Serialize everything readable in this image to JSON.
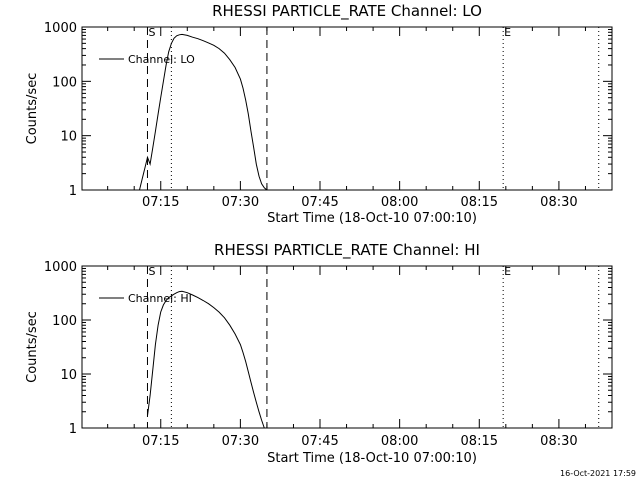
{
  "chart_data": [
    {
      "type": "line",
      "title": "RHESSI PARTICLE_RATE Channel: LO",
      "xlabel": "Start Time (18-Oct-10 07:00:10)",
      "ylabel": "Counts/sec",
      "y_scale": "log",
      "ylim": [
        1,
        1000
      ],
      "xlim": [
        "07:00:10",
        "08:40:00"
      ],
      "x_tick_labels": [
        "07:15",
        "07:30",
        "07:45",
        "08:00",
        "08:15",
        "08:30"
      ],
      "y_tick_labels": [
        "1",
        "10",
        "100",
        "1000"
      ],
      "legend_placement": "top-left",
      "markers": [
        {
          "label": "S",
          "time": "07:12:30",
          "style": "dashed"
        },
        {
          "label": "",
          "time": "07:35:00",
          "style": "dashed"
        },
        {
          "label": "",
          "time": "07:17:00",
          "style": "dotted"
        },
        {
          "label": "E",
          "time": "08:19:30",
          "style": "dotted"
        },
        {
          "label": "",
          "time": "08:37:30",
          "style": "dotted"
        }
      ],
      "series": [
        {
          "name": "Channel: LO",
          "x": [
            "07:11:00",
            "07:11:30",
            "07:12:00",
            "07:12:30",
            "07:13:00",
            "07:13:30",
            "07:14:00",
            "07:14:30",
            "07:15:00",
            "07:15:30",
            "07:16:00",
            "07:16:30",
            "07:17:00",
            "07:17:30",
            "07:18:00",
            "07:18:30",
            "07:19:00",
            "07:20:00",
            "07:21:00",
            "07:22:00",
            "07:23:00",
            "07:24:00",
            "07:25:00",
            "07:26:00",
            "07:27:00",
            "07:28:00",
            "07:29:00",
            "07:30:00",
            "07:30:30",
            "07:31:00",
            "07:31:30",
            "07:32:00",
            "07:32:30",
            "07:33:00",
            "07:33:30",
            "07:34:00",
            "07:34:30",
            "07:35:00"
          ],
          "values": [
            1.0,
            1.6,
            2.5,
            4.0,
            3.0,
            6.0,
            12,
            25,
            50,
            100,
            200,
            350,
            500,
            620,
            690,
            720,
            730,
            700,
            650,
            610,
            560,
            510,
            460,
            400,
            330,
            250,
            180,
            110,
            75,
            45,
            25,
            12,
            6,
            3,
            1.8,
            1.3,
            1.1,
            1.0
          ]
        }
      ]
    },
    {
      "type": "line",
      "title": "RHESSI PARTICLE_RATE Channel: HI",
      "xlabel": "Start Time (18-Oct-10 07:00:10)",
      "ylabel": "Counts/sec",
      "y_scale": "log",
      "ylim": [
        1,
        1000
      ],
      "xlim": [
        "07:00:10",
        "08:40:00"
      ],
      "x_tick_labels": [
        "07:15",
        "07:30",
        "07:45",
        "08:00",
        "08:15",
        "08:30"
      ],
      "y_tick_labels": [
        "1",
        "10",
        "100",
        "1000"
      ],
      "legend_placement": "top-left",
      "markers": [
        {
          "label": "S",
          "time": "07:12:30",
          "style": "dashed"
        },
        {
          "label": "",
          "time": "07:35:00",
          "style": "dashed"
        },
        {
          "label": "",
          "time": "07:17:00",
          "style": "dotted"
        },
        {
          "label": "E",
          "time": "08:19:30",
          "style": "dotted"
        },
        {
          "label": "",
          "time": "08:37:30",
          "style": "dotted"
        }
      ],
      "series": [
        {
          "name": "Channel: HI",
          "x": [
            "07:12:30",
            "07:13:00",
            "07:13:30",
            "07:14:00",
            "07:14:30",
            "07:15:00",
            "07:15:30",
            "07:16:00",
            "07:16:30",
            "07:17:00",
            "07:17:30",
            "07:18:00",
            "07:18:30",
            "07:19:00",
            "07:20:00",
            "07:21:00",
            "07:22:00",
            "07:23:00",
            "07:24:00",
            "07:25:00",
            "07:26:00",
            "07:27:00",
            "07:28:00",
            "07:29:00",
            "07:30:00",
            "07:30:30",
            "07:31:00",
            "07:31:30",
            "07:32:00",
            "07:32:30",
            "07:33:00",
            "07:33:30",
            "07:34:00",
            "07:34:30"
          ],
          "values": [
            1.7,
            4,
            12,
            35,
            80,
            140,
            190,
            230,
            260,
            280,
            300,
            320,
            335,
            340,
            320,
            290,
            260,
            230,
            200,
            170,
            140,
            110,
            80,
            55,
            35,
            25,
            17,
            11,
            7,
            4.5,
            3,
            2,
            1.4,
            1.0
          ]
        }
      ]
    }
  ],
  "footer": {
    "timestamp": "16-Oct-2021 17:59"
  }
}
